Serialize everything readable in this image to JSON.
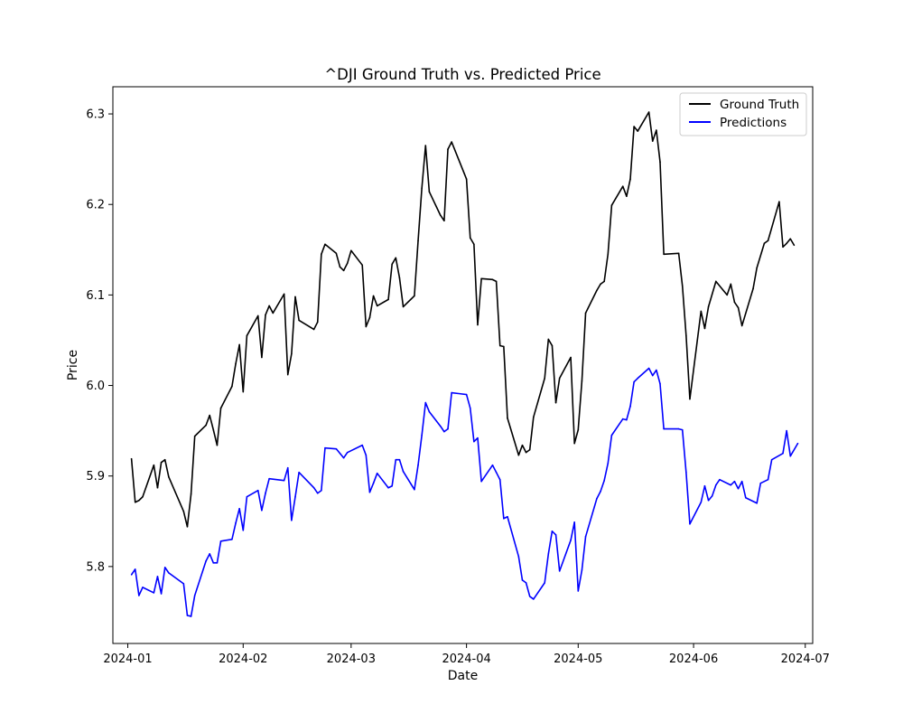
{
  "chart_data": {
    "type": "line",
    "title": "^DJI Ground Truth vs. Predicted Price",
    "xlabel": "Date",
    "ylabel": "Price",
    "x_range": [
      "2023-12-28",
      "2024-07-03"
    ],
    "ylim": [
      5.715,
      6.33
    ],
    "x_ticks": [
      "2024-01-01",
      "2024-02-01",
      "2024-03-01",
      "2024-04-01",
      "2024-05-01",
      "2024-06-01",
      "2024-07-01"
    ],
    "x_tick_labels": [
      "2024-01",
      "2024-02",
      "2024-03",
      "2024-04",
      "2024-05",
      "2024-06",
      "2024-07"
    ],
    "y_ticks": [
      5.8,
      5.9,
      6.0,
      6.1,
      6.2,
      6.3
    ],
    "y_tick_labels": [
      "5.8",
      "5.9",
      "6.0",
      "6.1",
      "6.2",
      "6.3"
    ],
    "grid": false,
    "legend_position": "top-right",
    "series": [
      {
        "name": "Ground Truth",
        "color": "#000000",
        "points": [
          [
            "2024-01-02",
            5.919
          ],
          [
            "2024-01-03",
            5.871
          ],
          [
            "2024-01-04",
            5.873
          ],
          [
            "2024-01-05",
            5.877
          ],
          [
            "2024-01-08",
            5.912
          ],
          [
            "2024-01-09",
            5.887
          ],
          [
            "2024-01-10",
            5.915
          ],
          [
            "2024-01-11",
            5.918
          ],
          [
            "2024-01-12",
            5.899
          ],
          [
            "2024-01-16",
            5.861
          ],
          [
            "2024-01-17",
            5.844
          ],
          [
            "2024-01-18",
            5.88
          ],
          [
            "2024-01-19",
            5.944
          ],
          [
            "2024-01-22",
            5.956
          ],
          [
            "2024-01-23",
            5.967
          ],
          [
            "2024-01-24",
            5.951
          ],
          [
            "2024-01-25",
            5.934
          ],
          [
            "2024-01-26",
            5.975
          ],
          [
            "2024-01-29",
            5.999
          ],
          [
            "2024-01-30",
            6.024
          ],
          [
            "2024-01-31",
            6.045
          ],
          [
            "2024-02-01",
            5.993
          ],
          [
            "2024-02-02",
            6.055
          ],
          [
            "2024-02-05",
            6.077
          ],
          [
            "2024-02-06",
            6.031
          ],
          [
            "2024-02-07",
            6.078
          ],
          [
            "2024-02-08",
            6.088
          ],
          [
            "2024-02-09",
            6.08
          ],
          [
            "2024-02-12",
            6.101
          ],
          [
            "2024-02-13",
            6.012
          ],
          [
            "2024-02-14",
            6.035
          ],
          [
            "2024-02-15",
            6.098
          ],
          [
            "2024-02-16",
            6.072
          ],
          [
            "2024-02-20",
            6.062
          ],
          [
            "2024-02-21",
            6.07
          ],
          [
            "2024-02-22",
            6.145
          ],
          [
            "2024-02-23",
            6.156
          ],
          [
            "2024-02-26",
            6.146
          ],
          [
            "2024-02-27",
            6.131
          ],
          [
            "2024-02-28",
            6.127
          ],
          [
            "2024-02-29",
            6.135
          ],
          [
            "2024-03-01",
            6.149
          ],
          [
            "2024-03-04",
            6.133
          ],
          [
            "2024-03-05",
            6.065
          ],
          [
            "2024-03-06",
            6.075
          ],
          [
            "2024-03-07",
            6.099
          ],
          [
            "2024-03-08",
            6.088
          ],
          [
            "2024-03-11",
            6.095
          ],
          [
            "2024-03-12",
            6.134
          ],
          [
            "2024-03-13",
            6.141
          ],
          [
            "2024-03-14",
            6.119
          ],
          [
            "2024-03-15",
            6.087
          ],
          [
            "2024-03-18",
            6.099
          ],
          [
            "2024-03-19",
            6.16
          ],
          [
            "2024-03-20",
            6.218
          ],
          [
            "2024-03-21",
            6.265
          ],
          [
            "2024-03-22",
            6.214
          ],
          [
            "2024-03-25",
            6.188
          ],
          [
            "2024-03-26",
            6.182
          ],
          [
            "2024-03-27",
            6.261
          ],
          [
            "2024-03-28",
            6.269
          ],
          [
            "2024-04-01",
            6.228
          ],
          [
            "2024-04-02",
            6.163
          ],
          [
            "2024-04-03",
            6.156
          ],
          [
            "2024-04-04",
            6.067
          ],
          [
            "2024-04-05",
            6.118
          ],
          [
            "2024-04-08",
            6.117
          ],
          [
            "2024-04-09",
            6.115
          ],
          [
            "2024-04-10",
            6.044
          ],
          [
            "2024-04-11",
            6.043
          ],
          [
            "2024-04-12",
            5.964
          ],
          [
            "2024-04-15",
            5.923
          ],
          [
            "2024-04-16",
            5.934
          ],
          [
            "2024-04-17",
            5.926
          ],
          [
            "2024-04-18",
            5.929
          ],
          [
            "2024-04-19",
            5.965
          ],
          [
            "2024-04-22",
            6.008
          ],
          [
            "2024-04-23",
            6.051
          ],
          [
            "2024-04-24",
            6.044
          ],
          [
            "2024-04-25",
            5.981
          ],
          [
            "2024-04-26",
            6.008
          ],
          [
            "2024-04-29",
            6.031
          ],
          [
            "2024-04-30",
            5.936
          ],
          [
            "2024-05-01",
            5.951
          ],
          [
            "2024-05-02",
            6.005
          ],
          [
            "2024-05-03",
            6.08
          ],
          [
            "2024-05-06",
            6.105
          ],
          [
            "2024-05-07",
            6.112
          ],
          [
            "2024-05-08",
            6.115
          ],
          [
            "2024-05-09",
            6.145
          ],
          [
            "2024-05-10",
            6.199
          ],
          [
            "2024-05-13",
            6.22
          ],
          [
            "2024-05-14",
            6.209
          ],
          [
            "2024-05-15",
            6.228
          ],
          [
            "2024-05-16",
            6.286
          ],
          [
            "2024-05-17",
            6.281
          ],
          [
            "2024-05-20",
            6.302
          ],
          [
            "2024-05-21",
            6.27
          ],
          [
            "2024-05-22",
            6.282
          ],
          [
            "2024-05-23",
            6.247
          ],
          [
            "2024-05-24",
            6.145
          ],
          [
            "2024-05-28",
            6.146
          ],
          [
            "2024-05-29",
            6.11
          ],
          [
            "2024-05-30",
            6.055
          ],
          [
            "2024-05-31",
            5.985
          ],
          [
            "2024-06-03",
            6.082
          ],
          [
            "2024-06-04",
            6.063
          ],
          [
            "2024-06-05",
            6.087
          ],
          [
            "2024-06-06",
            6.101
          ],
          [
            "2024-06-07",
            6.115
          ],
          [
            "2024-06-10",
            6.1
          ],
          [
            "2024-06-11",
            6.112
          ],
          [
            "2024-06-12",
            6.092
          ],
          [
            "2024-06-13",
            6.086
          ],
          [
            "2024-06-14",
            6.066
          ],
          [
            "2024-06-17",
            6.107
          ],
          [
            "2024-06-18",
            6.13
          ],
          [
            "2024-06-20",
            6.157
          ],
          [
            "2024-06-21",
            6.16
          ],
          [
            "2024-06-24",
            6.203
          ],
          [
            "2024-06-25",
            6.153
          ],
          [
            "2024-06-26",
            6.157
          ],
          [
            "2024-06-27",
            6.162
          ],
          [
            "2024-06-28",
            6.155
          ]
        ]
      },
      {
        "name": "Predictions",
        "color": "#0000ff",
        "points": [
          [
            "2024-01-02",
            5.791
          ],
          [
            "2024-01-03",
            5.797
          ],
          [
            "2024-01-04",
            5.768
          ],
          [
            "2024-01-05",
            5.777
          ],
          [
            "2024-01-08",
            5.771
          ],
          [
            "2024-01-09",
            5.789
          ],
          [
            "2024-01-10",
            5.77
          ],
          [
            "2024-01-11",
            5.799
          ],
          [
            "2024-01-12",
            5.793
          ],
          [
            "2024-01-16",
            5.781
          ],
          [
            "2024-01-17",
            5.746
          ],
          [
            "2024-01-18",
            5.745
          ],
          [
            "2024-01-19",
            5.768
          ],
          [
            "2024-01-22",
            5.806
          ],
          [
            "2024-01-23",
            5.814
          ],
          [
            "2024-01-24",
            5.804
          ],
          [
            "2024-01-25",
            5.804
          ],
          [
            "2024-01-26",
            5.828
          ],
          [
            "2024-01-29",
            5.83
          ],
          [
            "2024-01-30",
            5.848
          ],
          [
            "2024-01-31",
            5.864
          ],
          [
            "2024-02-01",
            5.84
          ],
          [
            "2024-02-02",
            5.877
          ],
          [
            "2024-02-05",
            5.884
          ],
          [
            "2024-02-06",
            5.862
          ],
          [
            "2024-02-07",
            5.881
          ],
          [
            "2024-02-08",
            5.897
          ],
          [
            "2024-02-12",
            5.895
          ],
          [
            "2024-02-13",
            5.909
          ],
          [
            "2024-02-14",
            5.851
          ],
          [
            "2024-02-15",
            5.877
          ],
          [
            "2024-02-16",
            5.904
          ],
          [
            "2024-02-20",
            5.887
          ],
          [
            "2024-02-21",
            5.881
          ],
          [
            "2024-02-22",
            5.884
          ],
          [
            "2024-02-23",
            5.931
          ],
          [
            "2024-02-26",
            5.93
          ],
          [
            "2024-02-27",
            5.925
          ],
          [
            "2024-02-28",
            5.92
          ],
          [
            "2024-02-29",
            5.926
          ],
          [
            "2024-03-04",
            5.934
          ],
          [
            "2024-03-05",
            5.923
          ],
          [
            "2024-03-06",
            5.882
          ],
          [
            "2024-03-07",
            5.892
          ],
          [
            "2024-03-08",
            5.903
          ],
          [
            "2024-03-11",
            5.887
          ],
          [
            "2024-03-12",
            5.889
          ],
          [
            "2024-03-13",
            5.918
          ],
          [
            "2024-03-14",
            5.918
          ],
          [
            "2024-03-15",
            5.905
          ],
          [
            "2024-03-18",
            5.885
          ],
          [
            "2024-03-19",
            5.912
          ],
          [
            "2024-03-20",
            5.945
          ],
          [
            "2024-03-21",
            5.981
          ],
          [
            "2024-03-22",
            5.971
          ],
          [
            "2024-03-25",
            5.955
          ],
          [
            "2024-03-26",
            5.949
          ],
          [
            "2024-03-27",
            5.952
          ],
          [
            "2024-03-28",
            5.992
          ],
          [
            "2024-04-01",
            5.99
          ],
          [
            "2024-04-02",
            5.975
          ],
          [
            "2024-04-03",
            5.938
          ],
          [
            "2024-04-04",
            5.942
          ],
          [
            "2024-04-05",
            5.894
          ],
          [
            "2024-04-08",
            5.912
          ],
          [
            "2024-04-09",
            5.904
          ],
          [
            "2024-04-10",
            5.896
          ],
          [
            "2024-04-11",
            5.853
          ],
          [
            "2024-04-12",
            5.855
          ],
          [
            "2024-04-15",
            5.811
          ],
          [
            "2024-04-16",
            5.785
          ],
          [
            "2024-04-17",
            5.782
          ],
          [
            "2024-04-18",
            5.767
          ],
          [
            "2024-04-19",
            5.764
          ],
          [
            "2024-04-22",
            5.782
          ],
          [
            "2024-04-23",
            5.814
          ],
          [
            "2024-04-24",
            5.839
          ],
          [
            "2024-04-25",
            5.835
          ],
          [
            "2024-04-26",
            5.795
          ],
          [
            "2024-04-29",
            5.829
          ],
          [
            "2024-04-30",
            5.849
          ],
          [
            "2024-05-01",
            5.773
          ],
          [
            "2024-05-02",
            5.796
          ],
          [
            "2024-05-03",
            5.833
          ],
          [
            "2024-05-06",
            5.875
          ],
          [
            "2024-05-07",
            5.883
          ],
          [
            "2024-05-08",
            5.895
          ],
          [
            "2024-05-09",
            5.914
          ],
          [
            "2024-05-10",
            5.945
          ],
          [
            "2024-05-13",
            5.963
          ],
          [
            "2024-05-14",
            5.962
          ],
          [
            "2024-05-15",
            5.977
          ],
          [
            "2024-05-16",
            6.004
          ],
          [
            "2024-05-17",
            6.008
          ],
          [
            "2024-05-20",
            6.019
          ],
          [
            "2024-05-21",
            6.011
          ],
          [
            "2024-05-22",
            6.017
          ],
          [
            "2024-05-23",
            6.002
          ],
          [
            "2024-05-24",
            5.952
          ],
          [
            "2024-05-28",
            5.952
          ],
          [
            "2024-05-29",
            5.951
          ],
          [
            "2024-05-30",
            5.904
          ],
          [
            "2024-05-31",
            5.847
          ],
          [
            "2024-06-03",
            5.871
          ],
          [
            "2024-06-04",
            5.889
          ],
          [
            "2024-06-05",
            5.873
          ],
          [
            "2024-06-06",
            5.878
          ],
          [
            "2024-06-07",
            5.89
          ],
          [
            "2024-06-08",
            5.896
          ],
          [
            "2024-06-11",
            5.89
          ],
          [
            "2024-06-12",
            5.894
          ],
          [
            "2024-06-13",
            5.886
          ],
          [
            "2024-06-14",
            5.894
          ],
          [
            "2024-06-15",
            5.876
          ],
          [
            "2024-06-18",
            5.87
          ],
          [
            "2024-06-19",
            5.892
          ],
          [
            "2024-06-21",
            5.896
          ],
          [
            "2024-06-22",
            5.918
          ],
          [
            "2024-06-25",
            5.925
          ],
          [
            "2024-06-26",
            5.95
          ],
          [
            "2024-06-27",
            5.922
          ],
          [
            "2024-06-29",
            5.936
          ]
        ]
      }
    ]
  }
}
